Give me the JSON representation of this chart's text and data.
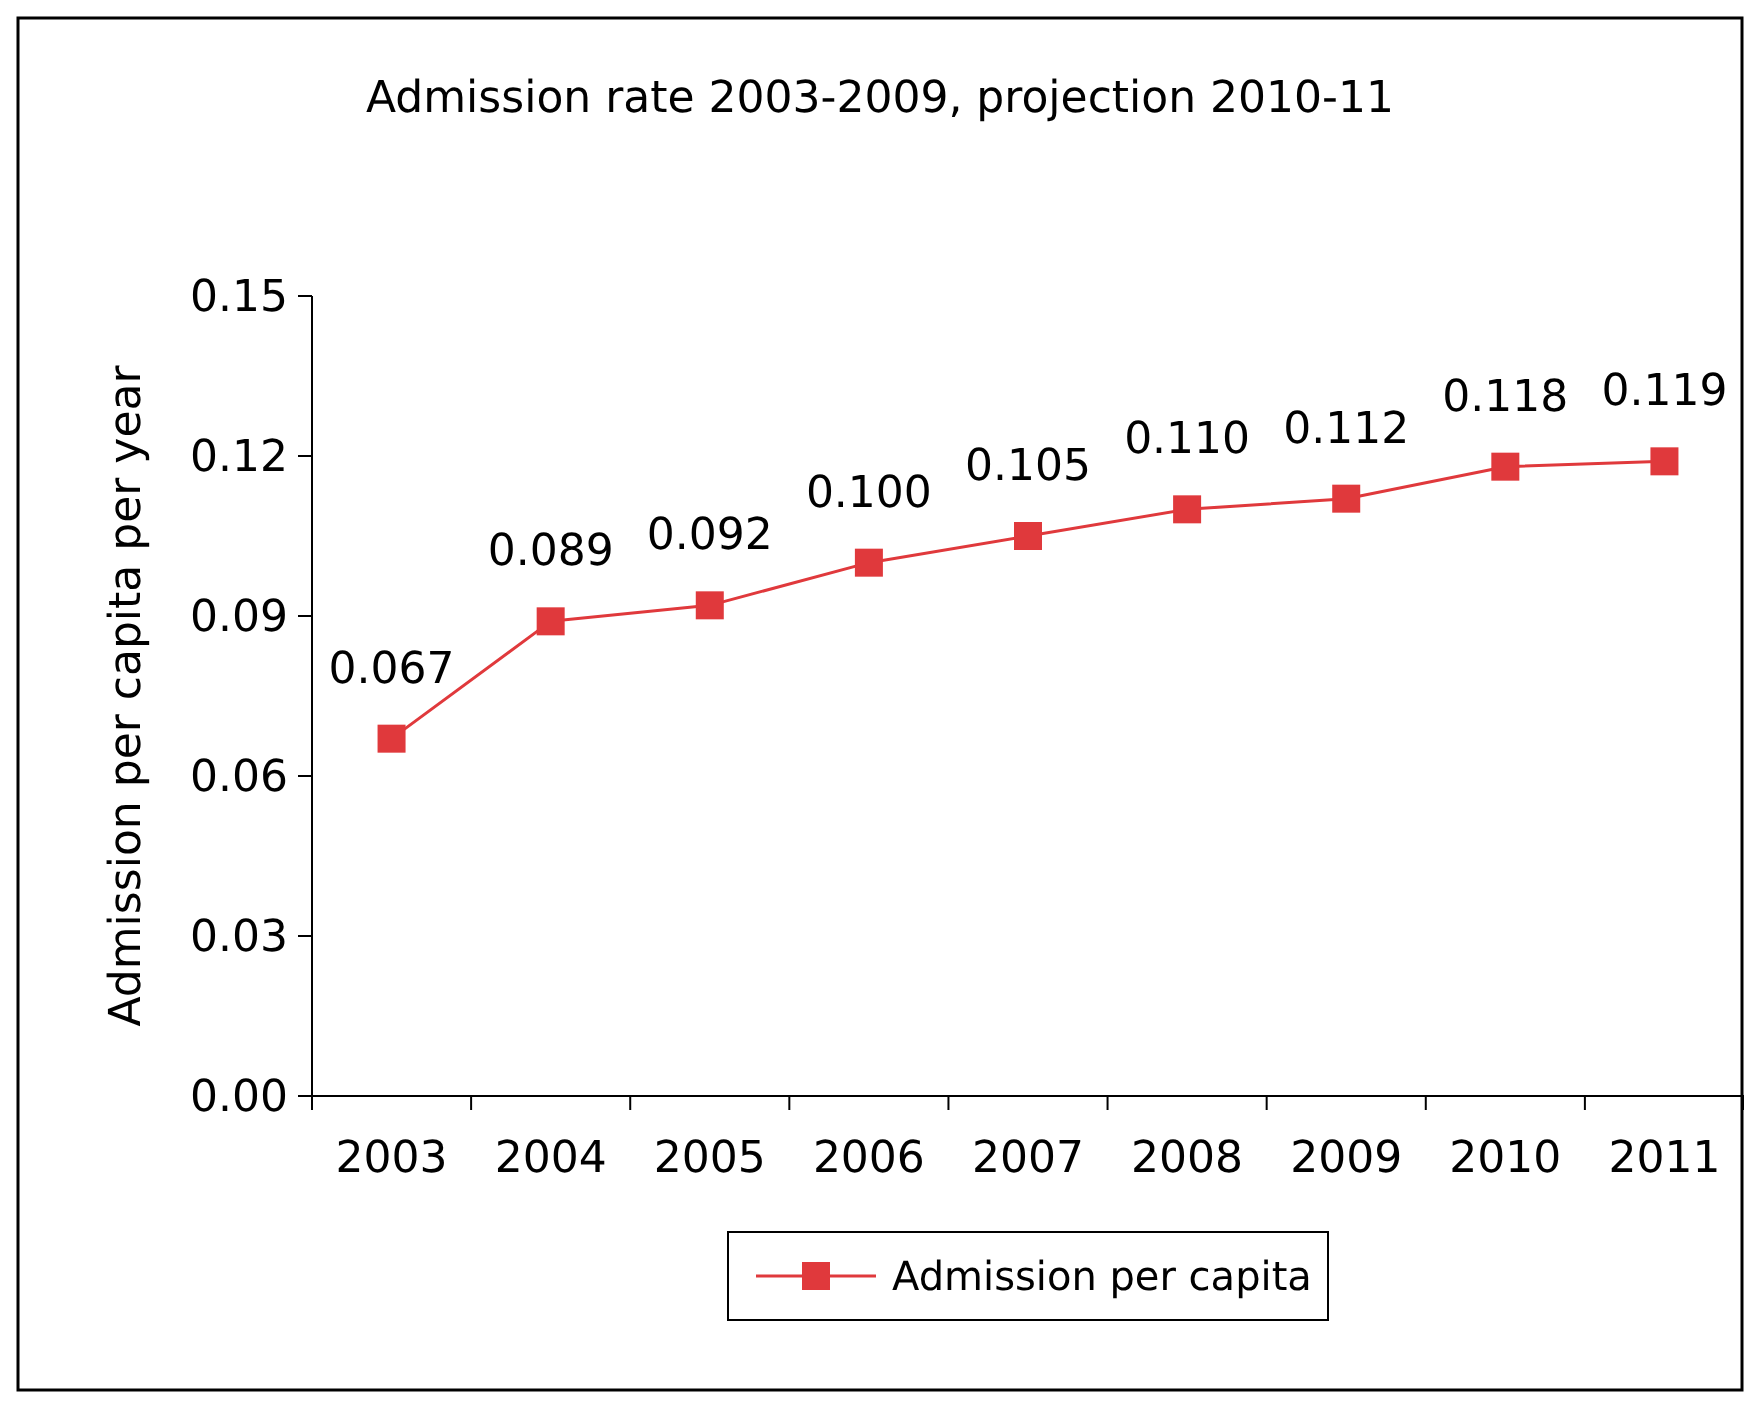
{
  "chart_data": {
    "type": "line",
    "title": "Admission rate 2003-2009, projection 2010-11",
    "ylabel": "Admission per capita per year",
    "categories": [
      "2003",
      "2004",
      "2005",
      "2006",
      "2007",
      "2008",
      "2009",
      "2010",
      "2011"
    ],
    "series": [
      {
        "name": "Admission per capita",
        "color": "#e0393c",
        "values": [
          0.067,
          0.089,
          0.092,
          0.1,
          0.105,
          0.11,
          0.112,
          0.118,
          0.119
        ],
        "value_labels": [
          "0.067",
          "0.089",
          "0.092",
          "0.100",
          "0.105",
          "0.110",
          "0.112",
          "0.118",
          "0.119"
        ]
      }
    ],
    "ylim": [
      0,
      0.15
    ],
    "yticks": [
      {
        "value": 0,
        "label": "0.00"
      },
      {
        "value": 0.03,
        "label": "0.03"
      },
      {
        "value": 0.06,
        "label": "0.06"
      },
      {
        "value": 0.09,
        "label": "0.09"
      },
      {
        "value": 0.12,
        "label": "0.12"
      },
      {
        "value": 0.15,
        "label": "0.15"
      }
    ],
    "grid": false,
    "legend": "bottom",
    "marker": "square",
    "line_style": "solid"
  }
}
